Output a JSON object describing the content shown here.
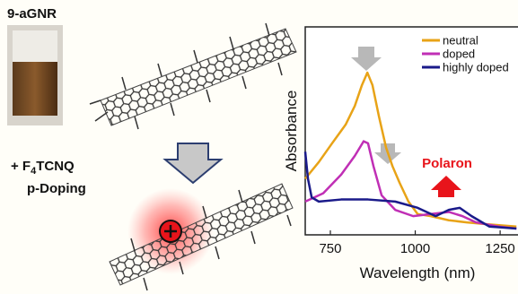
{
  "labels": {
    "sample": "9-aGNR",
    "dopant_prefix": "+ F",
    "dopant_sub": "4",
    "dopant_suffix": "TCNQ",
    "process": "p-Doping"
  },
  "chart_data": {
    "type": "line",
    "x_label": "Wavelength (nm)",
    "y_label": "Absorbance",
    "xlim": [
      676,
      1300
    ],
    "xticks": [
      750,
      1000,
      1250
    ],
    "ylim": [
      0,
      1
    ],
    "legend": "upper right",
    "annotations": [
      {
        "text": "Polaron",
        "color": "#e8141b"
      }
    ],
    "series": [
      {
        "name": "neutral",
        "color": "#e8a317",
        "x": [
          676,
          716,
          755,
          795,
          822,
          843,
          859,
          874,
          893,
          914,
          933,
          954,
          980,
          1007,
          1046,
          1099,
          1152,
          1218,
          1298
        ],
        "values": [
          0.27,
          0.35,
          0.44,
          0.53,
          0.62,
          0.72,
          0.78,
          0.72,
          0.57,
          0.42,
          0.33,
          0.25,
          0.16,
          0.1,
          0.09,
          0.07,
          0.06,
          0.05,
          0.04
        ]
      },
      {
        "name": "doped",
        "color": "#c02fb5",
        "x": [
          676,
          729,
          782,
          822,
          848,
          861,
          877,
          901,
          941,
          994,
          1046,
          1099,
          1139,
          1179,
          1245,
          1298
        ],
        "values": [
          0.16,
          0.2,
          0.29,
          0.38,
          0.45,
          0.44,
          0.33,
          0.19,
          0.12,
          0.09,
          0.1,
          0.11,
          0.09,
          0.06,
          0.04,
          0.03
        ]
      },
      {
        "name": "highly doped",
        "color": "#1a1a8a",
        "x": [
          676,
          684,
          695,
          716,
          782,
          861,
          941,
          1007,
          1060,
          1099,
          1131,
          1166,
          1218,
          1298
        ],
        "values": [
          0.4,
          0.27,
          0.18,
          0.16,
          0.17,
          0.17,
          0.16,
          0.13,
          0.09,
          0.12,
          0.13,
          0.09,
          0.04,
          0.03
        ]
      }
    ]
  }
}
